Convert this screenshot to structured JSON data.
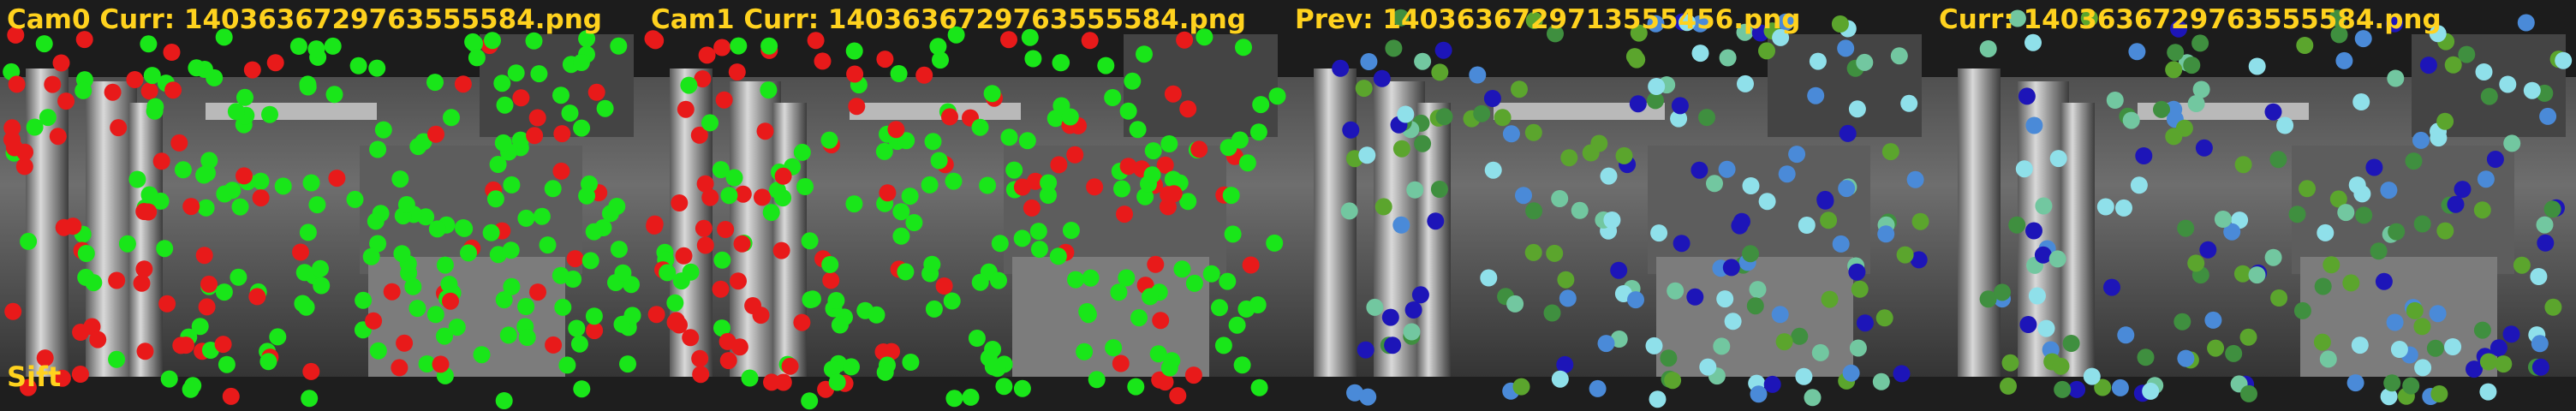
{
  "panels": [
    {
      "title": "Cam0 Curr: 1403636729763555584.png"
    },
    {
      "title": "Cam1 Curr: 1403636729763555584.png"
    },
    {
      "title": "Prev: 1403636729713555456.png"
    },
    {
      "title": "Curr: 1403636729763555584.png"
    }
  ],
  "method": "Sift",
  "colors": {
    "label": "#ffd21e",
    "inlier": "#19e619",
    "outlier": "#e81a1a",
    "track_colors": [
      "#5ba52d",
      "#72c7a0",
      "#1d15b8",
      "#8fe0ea",
      "#4a8ad8",
      "#3f8f3f"
    ]
  }
}
